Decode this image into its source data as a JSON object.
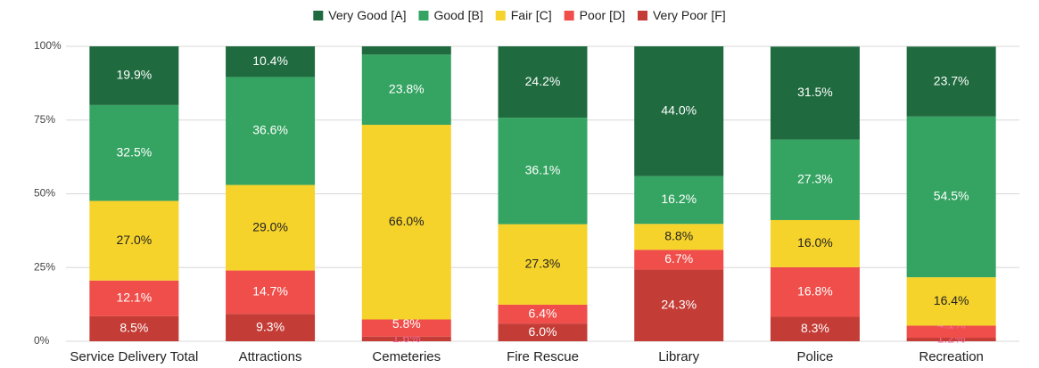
{
  "chart_data": {
    "type": "stacked_bar_100",
    "categories": [
      "Service Delivery Total",
      "Attractions",
      "Cemeteries",
      "Fire Rescue",
      "Library",
      "Police",
      "Recreation"
    ],
    "series": [
      {
        "name": "Very Good [A]",
        "color": "#1f6b3f",
        "label_color": "#ffffff",
        "values": [
          19.9,
          10.4,
          2.8,
          24.2,
          44.0,
          31.5,
          23.7
        ],
        "value_labels": [
          "19.9%",
          "10.4%",
          null,
          "24.2%",
          "44.0%",
          "31.5%",
          "23.7%"
        ]
      },
      {
        "name": "Good [B]",
        "color": "#35a462",
        "label_color": "#ffffff",
        "values": [
          32.5,
          36.6,
          23.8,
          36.1,
          16.2,
          27.3,
          54.5
        ],
        "value_labels": [
          "32.5%",
          "36.6%",
          "23.8%",
          "36.1%",
          "16.2%",
          "27.3%",
          "54.5%"
        ]
      },
      {
        "name": "Fair [C]",
        "color": "#f6d32b",
        "label_color": "#222222",
        "values": [
          27.0,
          29.0,
          66.0,
          27.3,
          8.8,
          16.0,
          16.4
        ],
        "value_labels": [
          "27.0%",
          "29.0%",
          "66.0%",
          "27.3%",
          "8.8%",
          "16.0%",
          "16.4%"
        ]
      },
      {
        "name": "Poor [D]",
        "color": "#ef4e4a",
        "label_color": "#ffffff",
        "values": [
          12.1,
          14.7,
          5.8,
          6.4,
          6.7,
          16.8,
          4.1
        ],
        "value_labels": [
          "12.1%",
          "14.7%",
          "5.8%",
          "6.4%",
          "6.7%",
          "16.8%",
          "4.1%"
        ]
      },
      {
        "name": "Very Poor [F]",
        "color": "#c43c36",
        "label_color": "#ffffff",
        "values": [
          8.5,
          9.3,
          1.6,
          6.0,
          24.3,
          8.3,
          1.2
        ],
        "value_labels": [
          "8.5%",
          "9.3%",
          "1.6%",
          "6.0%",
          "24.3%",
          "8.3%",
          "1.2%"
        ]
      }
    ],
    "ylim": [
      0,
      100
    ],
    "yticks": [
      {
        "value": 0,
        "label": "0%"
      },
      {
        "value": 25,
        "label": "25%"
      },
      {
        "value": 50,
        "label": "50%"
      },
      {
        "value": 75,
        "label": "75%"
      },
      {
        "value": 100,
        "label": "100%"
      }
    ],
    "grid": true,
    "legend": "top"
  }
}
